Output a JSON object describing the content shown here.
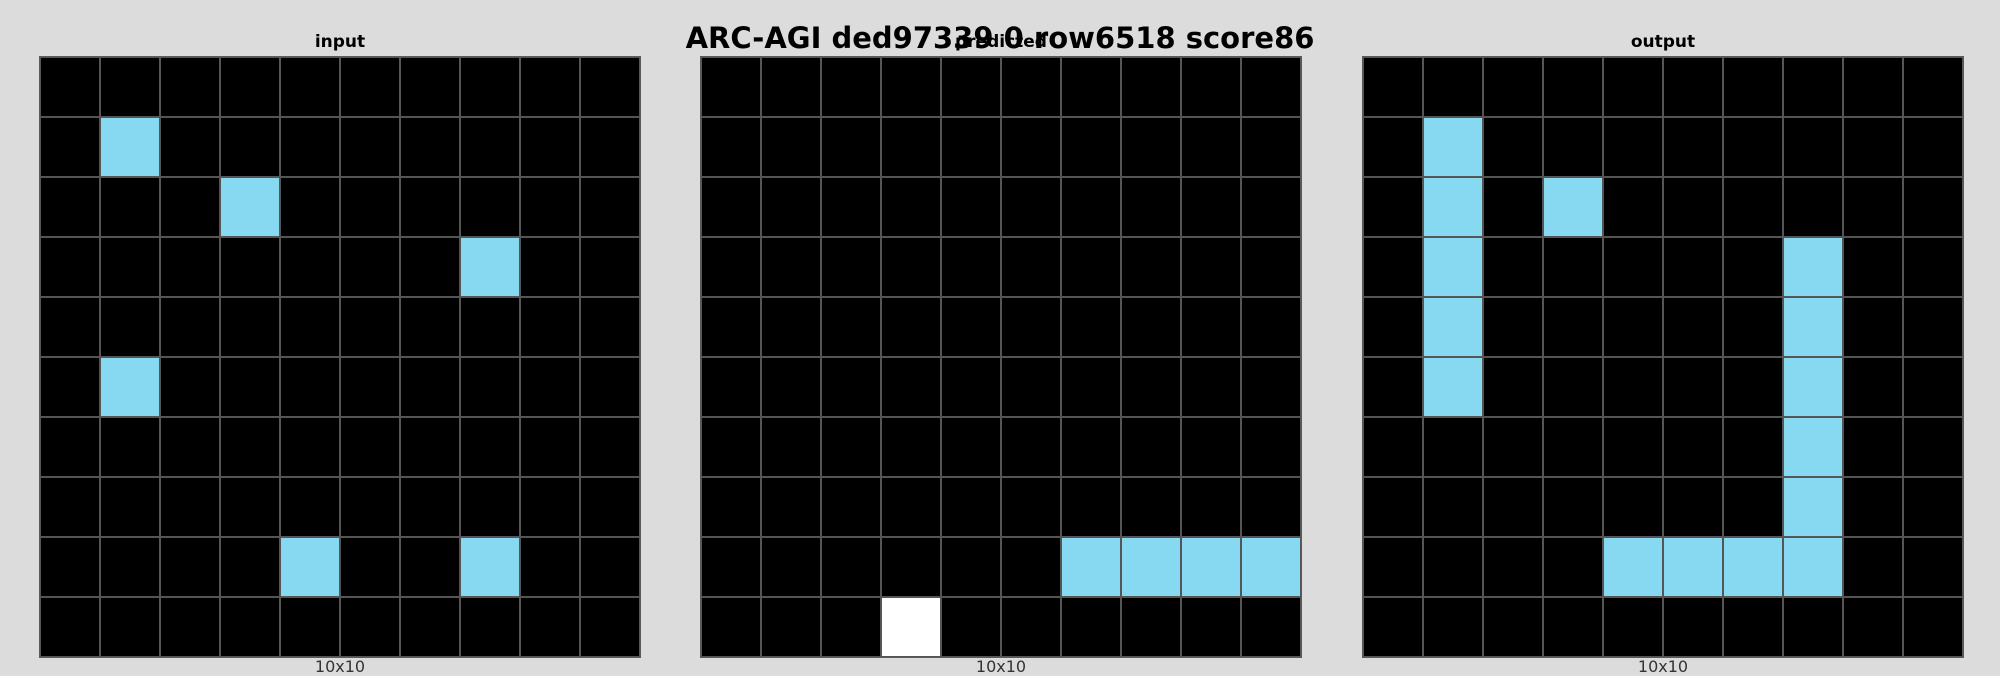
{
  "title": "ARC-AGI ded97339 0 row6518 score86",
  "palette": {
    "0": "#000000",
    "1": "#1e93ff",
    "5": "#ffffff",
    "8": "#87d8f1"
  },
  "panels": [
    {
      "title": "input",
      "caption": "10x10",
      "grid": [
        [
          0,
          0,
          0,
          0,
          0,
          0,
          0,
          0,
          0,
          0
        ],
        [
          0,
          8,
          0,
          0,
          0,
          0,
          0,
          0,
          0,
          0
        ],
        [
          0,
          0,
          0,
          8,
          0,
          0,
          0,
          0,
          0,
          0
        ],
        [
          0,
          0,
          0,
          0,
          0,
          0,
          0,
          8,
          0,
          0
        ],
        [
          0,
          0,
          0,
          0,
          0,
          0,
          0,
          0,
          0,
          0
        ],
        [
          0,
          8,
          0,
          0,
          0,
          0,
          0,
          0,
          0,
          0
        ],
        [
          0,
          0,
          0,
          0,
          0,
          0,
          0,
          0,
          0,
          0
        ],
        [
          0,
          0,
          0,
          0,
          0,
          0,
          0,
          0,
          0,
          0
        ],
        [
          0,
          0,
          0,
          0,
          8,
          0,
          0,
          8,
          0,
          0
        ],
        [
          0,
          0,
          0,
          0,
          0,
          0,
          0,
          0,
          0,
          0
        ]
      ]
    },
    {
      "title": "predicted",
      "caption": "10x10",
      "grid": [
        [
          0,
          0,
          0,
          0,
          0,
          0,
          0,
          0,
          0,
          0
        ],
        [
          0,
          0,
          0,
          0,
          0,
          0,
          0,
          0,
          0,
          0
        ],
        [
          0,
          0,
          0,
          0,
          0,
          0,
          0,
          0,
          0,
          0
        ],
        [
          0,
          0,
          0,
          0,
          0,
          0,
          0,
          0,
          0,
          0
        ],
        [
          0,
          0,
          0,
          0,
          0,
          0,
          0,
          0,
          0,
          0
        ],
        [
          0,
          0,
          0,
          0,
          0,
          0,
          0,
          0,
          0,
          0
        ],
        [
          0,
          0,
          0,
          0,
          0,
          0,
          0,
          0,
          0,
          0
        ],
        [
          0,
          0,
          0,
          0,
          0,
          0,
          0,
          0,
          0,
          0
        ],
        [
          0,
          0,
          0,
          0,
          0,
          0,
          8,
          8,
          8,
          8
        ],
        [
          0,
          0,
          0,
          5,
          0,
          0,
          0,
          0,
          0,
          0
        ]
      ]
    },
    {
      "title": "output",
      "caption": "10x10",
      "grid": [
        [
          0,
          0,
          0,
          0,
          0,
          0,
          0,
          0,
          0,
          0
        ],
        [
          0,
          8,
          0,
          0,
          0,
          0,
          0,
          0,
          0,
          0
        ],
        [
          0,
          8,
          0,
          8,
          0,
          0,
          0,
          0,
          0,
          0
        ],
        [
          0,
          8,
          0,
          0,
          0,
          0,
          0,
          8,
          0,
          0
        ],
        [
          0,
          8,
          0,
          0,
          0,
          0,
          0,
          8,
          0,
          0
        ],
        [
          0,
          8,
          0,
          0,
          0,
          0,
          0,
          8,
          0,
          0
        ],
        [
          0,
          0,
          0,
          0,
          0,
          0,
          0,
          8,
          0,
          0
        ],
        [
          0,
          0,
          0,
          0,
          0,
          0,
          0,
          8,
          0,
          0
        ],
        [
          0,
          0,
          0,
          0,
          8,
          8,
          8,
          8,
          0,
          0
        ],
        [
          0,
          0,
          0,
          0,
          0,
          0,
          0,
          0,
          0,
          0
        ]
      ]
    }
  ]
}
